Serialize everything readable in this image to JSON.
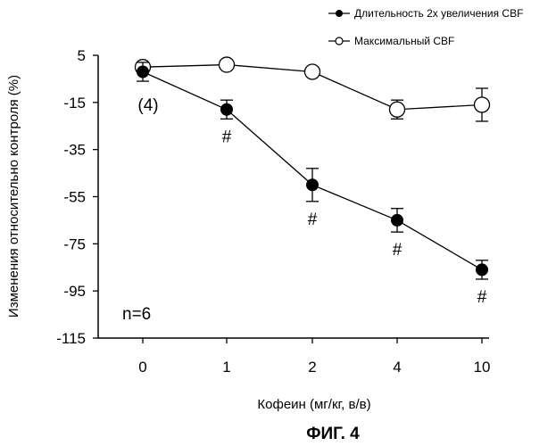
{
  "chart_data": {
    "type": "line",
    "title": "",
    "xlabel": "Кофеин (мг/кг, в/в)",
    "ylabel": "Изменения относительно контроля (%)",
    "categories": [
      "0",
      "1",
      "2",
      "4",
      "10"
    ],
    "ylim": [
      -115,
      5
    ],
    "yticks": [
      "5",
      "-15",
      "-35",
      "-55",
      "-75",
      "-95",
      "-115"
    ],
    "grid": false,
    "legend_position": "top-right",
    "series": [
      {
        "name": "Длительность 2х увеличения CBF",
        "marker": "filled-circle",
        "values": [
          -2,
          -18,
          -50,
          -65,
          -86
        ],
        "error": [
          4,
          4,
          7,
          5,
          4
        ],
        "significance": [
          "",
          "#",
          "#",
          "#",
          "#"
        ]
      },
      {
        "name": "Максимальный CBF",
        "marker": "open-circle",
        "values": [
          0,
          1,
          -2,
          -18,
          -16
        ],
        "error": [
          2,
          2,
          2,
          4,
          7
        ]
      }
    ],
    "annotations": {
      "sample_size_at_zero": "(4)",
      "n_label": "n=6"
    },
    "figure_label": "ФИГ. 4"
  },
  "colors": {
    "line": "#000000",
    "open_marker_fill": "#ffffff",
    "background": "#ffffff"
  }
}
